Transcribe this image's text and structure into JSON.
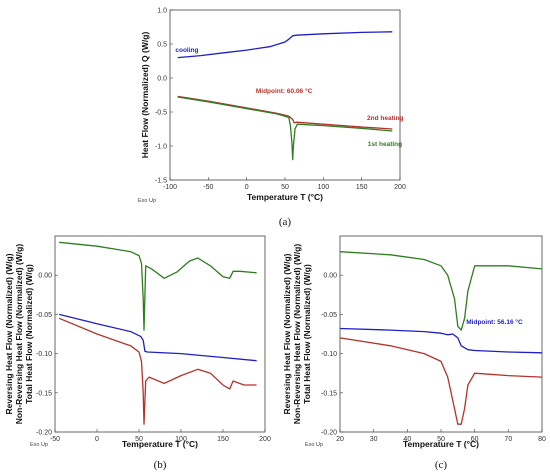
{
  "chart_data": [
    {
      "type": "line",
      "panel": "(a)",
      "xlabel": "Temperature T (°C)",
      "ylabel": "Heat Flow (Normalized) Q (W/g)",
      "xlim": [
        -100,
        200
      ],
      "ylim": [
        -1.5,
        1.0
      ],
      "xticks": [
        -100,
        -50,
        0,
        50,
        100,
        150,
        200
      ],
      "yticks": [
        -1.5,
        -1.0,
        -0.5,
        0.0,
        0.5,
        1.0
      ],
      "xtick_labels": [
        "-100",
        "-50",
        "0",
        "50",
        "100",
        "150",
        "200"
      ],
      "ytick_labels": [
        "-1.5",
        "-1.0",
        "-0.5",
        "0.0",
        "0.5",
        "1.0"
      ],
      "corner_note": "Exo Up",
      "annotations": [
        {
          "text": "cooling",
          "x": -93,
          "y": 0.38,
          "color": "#1f1fc8"
        },
        {
          "text": "Midpoint: 60.06 °C",
          "x": 12,
          "y": -0.22,
          "color": "#b3332b"
        },
        {
          "text": "2nd heating",
          "x": 157,
          "y": -0.62,
          "color": "#b3332b"
        },
        {
          "text": "1st heating",
          "x": 158,
          "y": -1.0,
          "color": "#2e7d1e"
        }
      ],
      "series": [
        {
          "color": "#1f1fc8",
          "x": [
            -90,
            -60,
            -30,
            0,
            30,
            50,
            55,
            60,
            65,
            100,
            150,
            190
          ],
          "y": [
            0.3,
            0.33,
            0.37,
            0.41,
            0.46,
            0.53,
            0.57,
            0.62,
            0.63,
            0.65,
            0.67,
            0.68
          ]
        },
        {
          "color": "#b3332b",
          "x": [
            -90,
            -50,
            0,
            40,
            55,
            60,
            62,
            65,
            100,
            150,
            190
          ],
          "y": [
            -0.27,
            -0.34,
            -0.44,
            -0.52,
            -0.56,
            -0.61,
            -0.66,
            -0.65,
            -0.68,
            -0.72,
            -0.75
          ]
        },
        {
          "color": "#2e7d1e",
          "x": [
            -90,
            -50,
            0,
            40,
            55,
            57,
            59,
            60,
            61,
            63,
            66,
            100,
            150,
            190
          ],
          "y": [
            -0.28,
            -0.35,
            -0.45,
            -0.53,
            -0.58,
            -0.7,
            -0.95,
            -1.2,
            -1.0,
            -0.75,
            -0.68,
            -0.7,
            -0.74,
            -0.78
          ]
        }
      ]
    },
    {
      "type": "line",
      "panel": "(b)",
      "xlabel": "Temperature T (°C)",
      "ylabel_lines": [
        {
          "text": "Reversing Heat Flow (Normalized) (W/g)",
          "color": "#1f1fc8"
        },
        {
          "text": "Non-Reversing Heat Flow (Normalized) (W/g)",
          "color": "#2e7d1e"
        },
        {
          "text": "Total Heat Flow (Normalized) (W/g)",
          "color": "#b3332b"
        }
      ],
      "xlim": [
        -50,
        200
      ],
      "ylim": [
        -0.2,
        0.05
      ],
      "xticks": [
        -50,
        0,
        50,
        100,
        150,
        200
      ],
      "yticks": [
        -0.2,
        -0.15,
        -0.1,
        -0.05,
        0.0
      ],
      "xtick_labels": [
        "-50",
        "0",
        "50",
        "100",
        "150",
        "200"
      ],
      "ytick_labels": [
        "-0.20",
        "-0.15",
        "-0.10",
        "-0.05",
        "0.00"
      ],
      "corner_note": "Exo Up",
      "series": [
        {
          "color": "#2e7d1e",
          "x": [
            -45,
            0,
            40,
            50,
            53,
            55,
            56,
            58,
            65,
            80,
            95,
            110,
            120,
            135,
            150,
            158,
            162,
            170,
            190
          ],
          "y": [
            0.042,
            0.037,
            0.03,
            0.025,
            0.015,
            -0.03,
            -0.07,
            0.012,
            0.008,
            -0.004,
            0.004,
            0.018,
            0.022,
            0.012,
            -0.002,
            -0.004,
            0.005,
            0.005,
            0.003
          ]
        },
        {
          "color": "#1f1fc8",
          "x": [
            -45,
            0,
            40,
            52,
            55,
            57,
            60,
            100,
            150,
            190
          ],
          "y": [
            -0.05,
            -0.062,
            -0.072,
            -0.078,
            -0.083,
            -0.097,
            -0.098,
            -0.1,
            -0.105,
            -0.109
          ]
        },
        {
          "color": "#b3332b",
          "x": [
            -45,
            0,
            40,
            50,
            53,
            55,
            56,
            58,
            62,
            80,
            100,
            120,
            135,
            150,
            158,
            162,
            175,
            190
          ],
          "y": [
            -0.055,
            -0.075,
            -0.09,
            -0.098,
            -0.11,
            -0.15,
            -0.19,
            -0.135,
            -0.13,
            -0.138,
            -0.128,
            -0.12,
            -0.125,
            -0.14,
            -0.145,
            -0.135,
            -0.14,
            -0.14
          ]
        }
      ]
    },
    {
      "type": "line",
      "panel": "(c)",
      "xlabel": "Temperature T (°C)",
      "ylabel_lines": [
        {
          "text": "Reversing Heat Flow (Normalized) (W/g)",
          "color": "#1f1fc8"
        },
        {
          "text": "Non-Reversing Heat Flow (Normalized) (W/g)",
          "color": "#2e7d1e"
        },
        {
          "text": "Total Heat Flow (Normalized) (W/g)",
          "color": "#b3332b"
        }
      ],
      "xlim": [
        20,
        80
      ],
      "ylim": [
        -0.2,
        0.05
      ],
      "xticks": [
        20,
        30,
        40,
        50,
        60,
        70,
        80
      ],
      "yticks": [
        -0.2,
        -0.15,
        -0.1,
        -0.05,
        0.0
      ],
      "xtick_labels": [
        "20",
        "30",
        "40",
        "50",
        "60",
        "70",
        "80"
      ],
      "ytick_labels": [
        "-0.20",
        "-0.15",
        "-0.10",
        "-0.05",
        "0.00"
      ],
      "corner_note": "Exo Up",
      "annotations": [
        {
          "text": "Midpoint: 56.16 °C",
          "x": 57.5,
          "y": -0.062,
          "color": "#1f1fc8"
        }
      ],
      "series": [
        {
          "color": "#2e7d1e",
          "x": [
            20,
            35,
            45,
            50,
            52,
            54,
            55,
            56,
            57,
            58,
            60,
            70,
            80
          ],
          "y": [
            0.03,
            0.026,
            0.02,
            0.012,
            0.0,
            -0.03,
            -0.065,
            -0.07,
            -0.055,
            -0.02,
            0.012,
            0.012,
            0.008
          ]
        },
        {
          "color": "#1f1fc8",
          "x": [
            20,
            35,
            45,
            50,
            52,
            53.5,
            55,
            56,
            58,
            60,
            70,
            80
          ],
          "y": [
            -0.068,
            -0.07,
            -0.072,
            -0.074,
            -0.076,
            -0.075,
            -0.08,
            -0.09,
            -0.095,
            -0.096,
            -0.098,
            -0.099
          ]
        },
        {
          "color": "#b3332b",
          "x": [
            20,
            35,
            45,
            50,
            52,
            54,
            55,
            56,
            57,
            58,
            60,
            70,
            80
          ],
          "y": [
            -0.08,
            -0.09,
            -0.1,
            -0.11,
            -0.13,
            -0.17,
            -0.19,
            -0.19,
            -0.17,
            -0.14,
            -0.125,
            -0.128,
            -0.13
          ]
        }
      ]
    }
  ]
}
